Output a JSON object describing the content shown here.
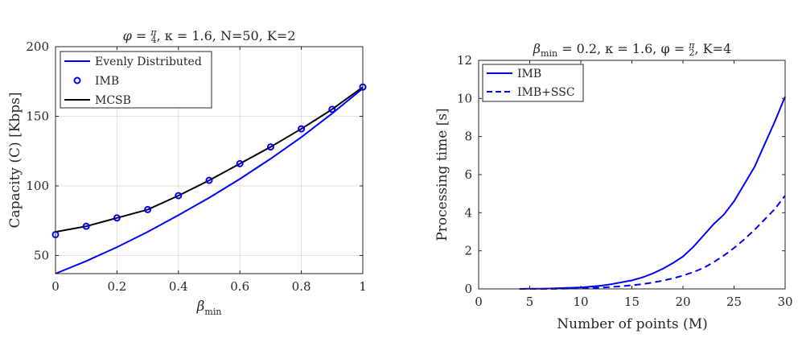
{
  "chart_data": [
    {
      "type": "line",
      "title": "φ = π/4, κ = 1.6, N=50, K=2",
      "title_parts": {
        "phi": "φ",
        "eq1": " = ",
        "frac_num": "π",
        "frac_den": "4",
        "rest": ", κ = 1.6, N=50, K=2"
      },
      "xlabel": "β",
      "xlabel_sub": "min",
      "ylabel": "Capacity (C) [Kbps]",
      "xlim": [
        0,
        1
      ],
      "ylim": [
        37,
        200
      ],
      "xticks": [
        "0",
        "0.2",
        "0.4",
        "0.6",
        "0.8",
        "1"
      ],
      "xtick_values": [
        0,
        0.2,
        0.4,
        0.6,
        0.8,
        1
      ],
      "yticks": [
        "50",
        "100",
        "150",
        "200"
      ],
      "ytick_values": [
        50,
        100,
        150,
        200
      ],
      "grid": true,
      "legend_position": "top-left",
      "x": [
        0,
        0.1,
        0.2,
        0.3,
        0.4,
        0.5,
        0.6,
        0.7,
        0.8,
        0.9,
        1.0
      ],
      "series": [
        {
          "name": "Evenly Distributed",
          "style": "line",
          "color": "#0000ff",
          "values": [
            37,
            46,
            56,
            67,
            79,
            91.5,
            105,
            119.5,
            135,
            152,
            170
          ]
        },
        {
          "name": "IMB",
          "style": "markers",
          "color": "#0000ff",
          "values": [
            65,
            71,
            77,
            83,
            93,
            104,
            116,
            128,
            141,
            155,
            171
          ]
        },
        {
          "name": "MCSB",
          "style": "line",
          "color": "#000000",
          "values": [
            67,
            71,
            77,
            83,
            93,
            104,
            116,
            128,
            141,
            155,
            171
          ]
        }
      ]
    },
    {
      "type": "line",
      "title": "β_min = 0.2, κ = 1.6, φ = π/2, K=4",
      "title_parts": {
        "beta": "β",
        "beta_sub": "min",
        "mid": " = 0.2, κ = 1.6, φ = ",
        "frac_num": "π",
        "frac_den": "2",
        "rest": ", K=4"
      },
      "xlabel": "Number of points (M)",
      "ylabel": "Processing time [s]",
      "xlim": [
        0,
        30
      ],
      "ylim": [
        0,
        12
      ],
      "xticks": [
        "0",
        "5",
        "10",
        "15",
        "20",
        "25",
        "30"
      ],
      "xtick_values": [
        0,
        5,
        10,
        15,
        20,
        25,
        30
      ],
      "yticks": [
        "0",
        "2",
        "4",
        "6",
        "8",
        "10",
        "12"
      ],
      "ytick_values": [
        0,
        2,
        4,
        6,
        8,
        10,
        12
      ],
      "grid": false,
      "legend_position": "top-left",
      "x": [
        4,
        5,
        6,
        7,
        8,
        9,
        10,
        11,
        12,
        13,
        14,
        15,
        16,
        17,
        18,
        19,
        20,
        21,
        22,
        23,
        24,
        25,
        26,
        27,
        28,
        29,
        30
      ],
      "series": [
        {
          "name": "IMB",
          "style": "solid",
          "color": "#0000ff",
          "values": [
            0.0,
            0.01,
            0.01,
            0.02,
            0.04,
            0.06,
            0.08,
            0.12,
            0.17,
            0.25,
            0.35,
            0.45,
            0.6,
            0.8,
            1.05,
            1.35,
            1.7,
            2.2,
            2.8,
            3.4,
            3.9,
            4.6,
            5.5,
            6.4,
            7.6,
            8.8,
            10.1
          ]
        },
        {
          "name": "IMB+SSC",
          "style": "dashed",
          "color": "#0000ff",
          "values": [
            0.0,
            0.0,
            0.0,
            0.0,
            0.01,
            0.02,
            0.03,
            0.05,
            0.07,
            0.1,
            0.14,
            0.19,
            0.25,
            0.33,
            0.43,
            0.55,
            0.7,
            0.88,
            1.1,
            1.4,
            1.75,
            2.15,
            2.6,
            3.1,
            3.65,
            4.2,
            4.9
          ]
        }
      ]
    }
  ]
}
